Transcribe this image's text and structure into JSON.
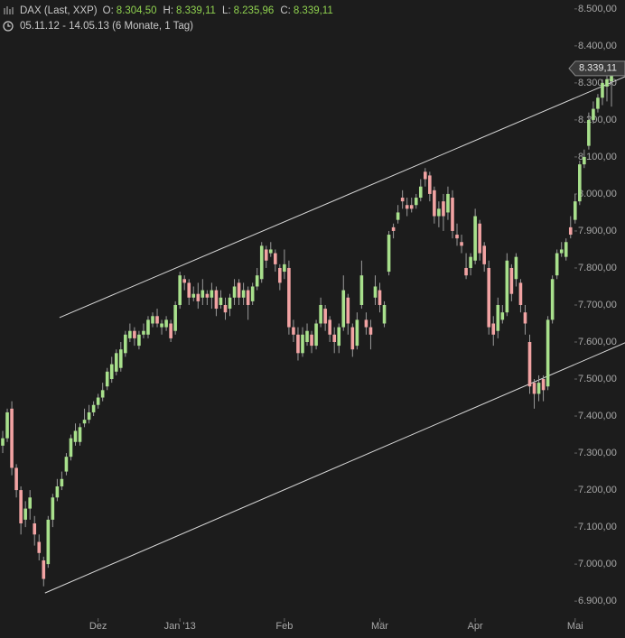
{
  "chart_data": {
    "type": "candlestick",
    "title": "DAX (Last, XXP)",
    "subtitle": "05.11.12 - 14.05.13 (6 Monate, 1 Tag)",
    "header_values": [
      {
        "label": "O:",
        "value": "8.304,50"
      },
      {
        "label": "H:",
        "value": "8.339,11"
      },
      {
        "label": "L:",
        "value": "8.235,96"
      },
      {
        "label": "C:",
        "value": "8.339,11"
      }
    ],
    "last_price_label": "8.339,11",
    "up_color": "#a8e08c",
    "down_color": "#f2a3a3",
    "wick_color": "#9a9a9a",
    "categories": [
      null,
      null,
      null,
      null,
      null,
      null,
      null,
      null,
      null,
      null,
      null,
      null,
      null,
      null,
      null,
      null,
      null,
      null,
      null,
      null,
      null,
      "Dez",
      null,
      null,
      null,
      null,
      null,
      null,
      null,
      null,
      null,
      null,
      null,
      null,
      null,
      null,
      null,
      null,
      null,
      "Jan '13",
      null,
      null,
      null,
      null,
      null,
      null,
      null,
      null,
      null,
      null,
      null,
      null,
      null,
      null,
      null,
      null,
      null,
      null,
      null,
      null,
      null,
      null,
      "Feb",
      null,
      null,
      null,
      null,
      null,
      null,
      null,
      null,
      null,
      null,
      null,
      null,
      null,
      null,
      null,
      null,
      null,
      null,
      null,
      null,
      "Mär",
      null,
      null,
      null,
      null,
      null,
      null,
      null,
      null,
      null,
      null,
      null,
      null,
      null,
      null,
      null,
      null,
      null,
      null,
      null,
      null,
      "Apr",
      null,
      null,
      null,
      null,
      null,
      null,
      null,
      null,
      null,
      null,
      null,
      null,
      null,
      null,
      null,
      null,
      null,
      null,
      null,
      null,
      null,
      "Mai",
      null,
      null,
      null,
      null,
      null,
      null,
      null,
      null
    ],
    "open": [
      7320,
      7340,
      7420,
      7260,
      7200,
      7120,
      7150,
      7110,
      7060,
      7010,
      7000,
      7120,
      7180,
      7210,
      7250,
      7290,
      7330,
      7330,
      7380,
      7390,
      7410,
      7430,
      7450,
      7480,
      7500,
      7520,
      7530,
      7570,
      7610,
      7630,
      7590,
      7620,
      7620,
      7650,
      7670,
      7640,
      7640,
      7650,
      7630,
      7700,
      7770,
      7760,
      7720,
      7730,
      7720,
      7730,
      7720,
      7740,
      7700,
      7700,
      7690,
      7720,
      7760,
      7720,
      7740,
      7710,
      7750,
      7770,
      7850,
      7840,
      7840,
      7800,
      7790,
      7800,
      7640,
      7620,
      7570,
      7600,
      7620,
      7590,
      7650,
      7690,
      7660,
      7620,
      7590,
      7640,
      7720,
      7640,
      7590,
      7700,
      7660,
      7640,
      7720,
      7740,
      7650,
      7790,
      7910,
      7930,
      7990,
      7970,
      7970,
      7970,
      7990,
      8060,
      8050,
      8010,
      7940,
      7980,
      7950,
      7990,
      7890,
      7870,
      7800,
      7800,
      7820,
      7920,
      7860,
      7800,
      7650,
      7630,
      7660,
      7680,
      7800,
      7770,
      7760,
      7680,
      7600,
      7490,
      7460,
      7500,
      7480,
      7660,
      7780,
      7840,
      7830,
      7910,
      7930,
      7980,
      8080,
      8130,
      8200,
      8230,
      8260,
      8290,
      8304.5
    ],
    "high": [
      7360,
      7420,
      7440,
      7270,
      7210,
      7170,
      7200,
      7130,
      7080,
      7020,
      7130,
      7190,
      7230,
      7250,
      7300,
      7350,
      7380,
      7380,
      7420,
      7430,
      7440,
      7460,
      7490,
      7530,
      7560,
      7580,
      7600,
      7630,
      7650,
      7640,
      7630,
      7650,
      7670,
      7680,
      7690,
      7660,
      7670,
      7660,
      7710,
      7790,
      7780,
      7770,
      7750,
      7760,
      7770,
      7740,
      7760,
      7750,
      7740,
      7720,
      7730,
      7770,
      7770,
      7760,
      7750,
      7760,
      7800,
      7870,
      7860,
      7870,
      7850,
      7810,
      7850,
      7820,
      7660,
      7640,
      7640,
      7650,
      7630,
      7660,
      7720,
      7700,
      7670,
      7640,
      7650,
      7780,
      7730,
      7650,
      7680,
      7820,
      7680,
      7660,
      7780,
      7760,
      7710,
      7900,
      7920,
      7970,
      8010,
      7990,
      7990,
      8000,
      8040,
      8070,
      8060,
      8020,
      7980,
      8000,
      8020,
      8010,
      7920,
      7890,
      7840,
      7840,
      7960,
      7930,
      7870,
      7820,
      7670,
      7720,
      7700,
      7840,
      7810,
      7840,
      7770,
      7700,
      7620,
      7500,
      7510,
      7510,
      7670,
      7780,
      7850,
      7870,
      7880,
      7940,
      8000,
      8090,
      8120,
      8220,
      8250,
      8270,
      8310,
      8330,
      8339.11
    ],
    "low": [
      7300,
      7330,
      7240,
      7180,
      7080,
      7100,
      7120,
      7050,
      7010,
      6940,
      6990,
      7100,
      7170,
      7200,
      7240,
      7280,
      7320,
      7320,
      7370,
      7380,
      7400,
      7420,
      7440,
      7470,
      7490,
      7510,
      7520,
      7560,
      7600,
      7590,
      7580,
      7610,
      7610,
      7640,
      7640,
      7620,
      7630,
      7600,
      7620,
      7690,
      7740,
      7700,
      7710,
      7690,
      7700,
      7700,
      7690,
      7670,
      7690,
      7660,
      7670,
      7700,
      7700,
      7700,
      7660,
      7700,
      7740,
      7760,
      7800,
      7830,
      7790,
      7740,
      7770,
      7620,
      7600,
      7550,
      7560,
      7590,
      7570,
      7580,
      7640,
      7630,
      7600,
      7570,
      7570,
      7630,
      7620,
      7560,
      7580,
      7690,
      7620,
      7580,
      7700,
      7680,
      7640,
      7780,
      7880,
      7920,
      7960,
      7940,
      7950,
      7960,
      7980,
      8020,
      7980,
      7920,
      7910,
      7900,
      7930,
      7880,
      7860,
      7840,
      7770,
      7780,
      7810,
      7820,
      7790,
      7620,
      7590,
      7610,
      7650,
      7670,
      7710,
      7750,
      7680,
      7620,
      7460,
      7420,
      7440,
      7440,
      7470,
      7650,
      7770,
      7830,
      7820,
      7880,
      7920,
      7970,
      8070,
      8120,
      8190,
      8220,
      8240,
      8250,
      8235.96
    ],
    "close": [
      7340,
      7410,
      7260,
      7200,
      7110,
      7150,
      7180,
      7080,
      7030,
      6960,
      7120,
      7180,
      7210,
      7230,
      7290,
      7340,
      7360,
      7370,
      7390,
      7410,
      7430,
      7450,
      7470,
      7520,
      7540,
      7570,
      7580,
      7620,
      7630,
      7610,
      7620,
      7630,
      7660,
      7670,
      7650,
      7650,
      7660,
      7610,
      7700,
      7780,
      7760,
      7720,
      7730,
      7710,
      7740,
      7720,
      7740,
      7690,
      7720,
      7680,
      7720,
      7750,
      7720,
      7740,
      7700,
      7750,
      7780,
      7860,
      7820,
      7850,
      7810,
      7760,
      7810,
      7640,
      7620,
      7570,
      7620,
      7630,
      7590,
      7650,
      7700,
      7650,
      7620,
      7600,
      7640,
      7740,
      7650,
      7580,
      7660,
      7780,
      7640,
      7620,
      7750,
      7700,
      7700,
      7890,
      7900,
      7950,
      7980,
      7960,
      7960,
      7990,
      8020,
      8040,
      8000,
      7940,
      7960,
      7940,
      8000,
      7900,
      7880,
      7860,
      7780,
      7830,
      7940,
      7840,
      7810,
      7640,
      7620,
      7700,
      7680,
      7820,
      7730,
      7830,
      7700,
      7650,
      7480,
      7460,
      7490,
      7470,
      7660,
      7770,
      7840,
      7850,
      7870,
      7890,
      7980,
      8080,
      8100,
      8200,
      8230,
      8260,
      8300,
      8310,
      8339.11
    ],
    "trendlines": [
      {
        "x": [
          12.5,
          137
        ],
        "y": [
          7666,
          8317
        ]
      },
      {
        "x": [
          9.3,
          137
        ],
        "y": [
          6922,
          7598
        ]
      }
    ],
    "ylim": [
      6854,
      8524
    ],
    "yticks": [
      {
        "value": 6900,
        "label": "6.900,00"
      },
      {
        "value": 7000,
        "label": "7.000,00"
      },
      {
        "value": 7100,
        "label": "7.100,00"
      },
      {
        "value": 7200,
        "label": "7.200,00"
      },
      {
        "value": 7300,
        "label": "7.300,00"
      },
      {
        "value": 7400,
        "label": "7.400,00"
      },
      {
        "value": 7500,
        "label": "7.500,00"
      },
      {
        "value": 7600,
        "label": "7.600,00"
      },
      {
        "value": 7700,
        "label": "7.700,00"
      },
      {
        "value": 7800,
        "label": "7.800,00"
      },
      {
        "value": 7900,
        "label": "7.900,00"
      },
      {
        "value": 8000,
        "label": "8.000,00"
      },
      {
        "value": 8100,
        "label": "8.100,00"
      },
      {
        "value": 8200,
        "label": "8.200,00"
      },
      {
        "value": 8300,
        "label": "8.300,00"
      },
      {
        "value": 8400,
        "label": "8.400,00"
      },
      {
        "value": 8500,
        "label": "8.500,00"
      }
    ]
  }
}
